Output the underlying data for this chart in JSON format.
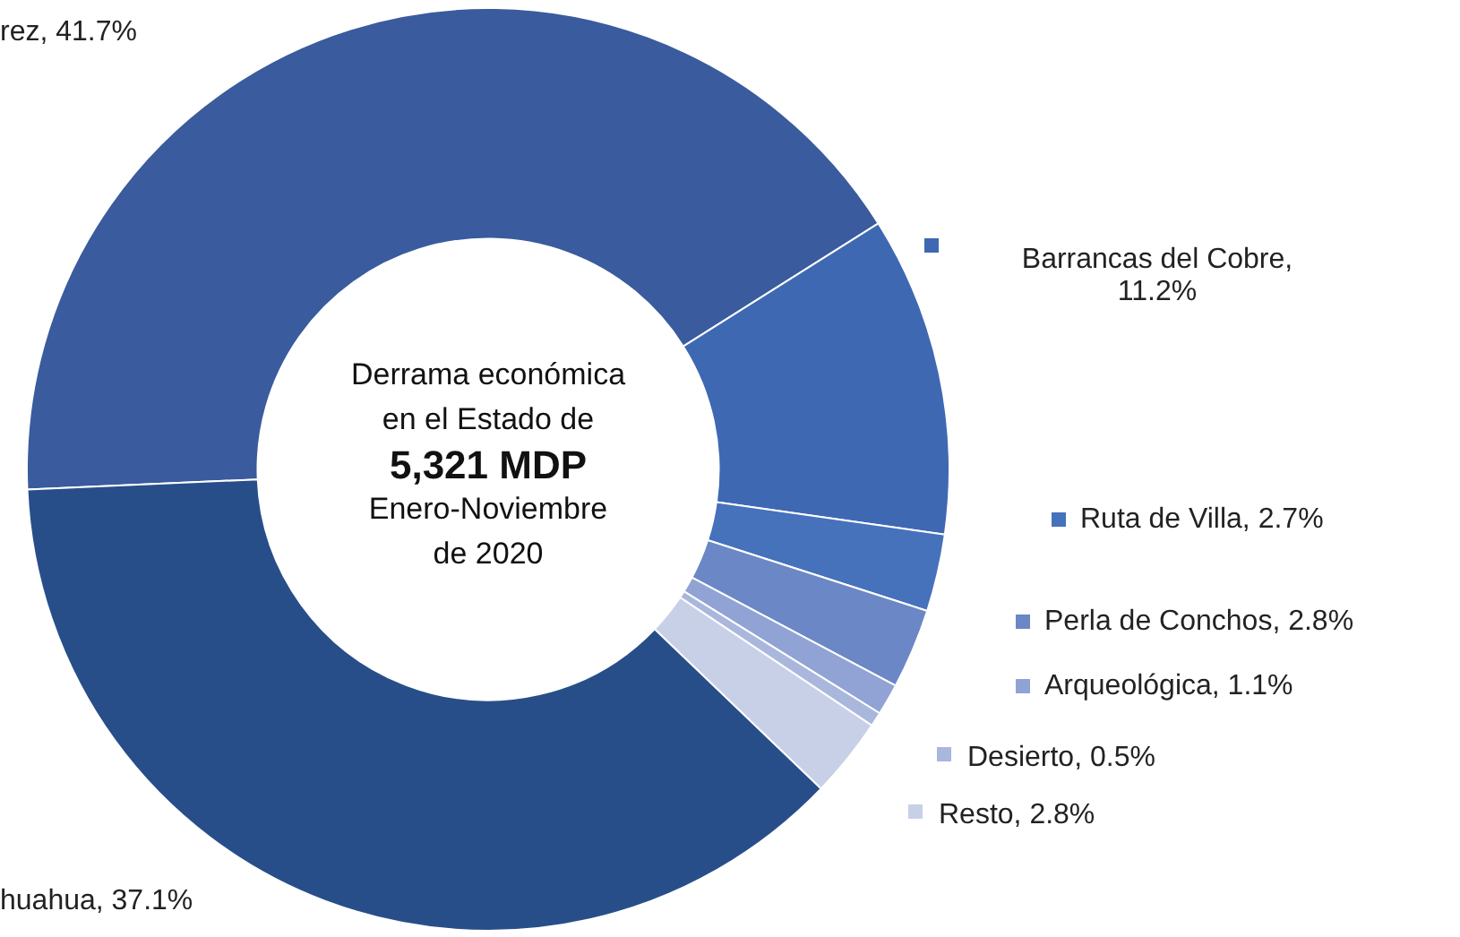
{
  "chart_data": {
    "type": "donut",
    "categories": [
      "rez, 41.7%",
      "Barrancas del Cobre, 11.2%",
      "Ruta de Villa, 2.7%",
      "Perla de Conchos, 2.8%",
      "Arqueológica, 1.1%",
      "Desierto, 0.5%",
      "Resto, 2.8%",
      "huahua, 37.1%"
    ],
    "values": [
      41.7,
      11.2,
      2.7,
      2.8,
      1.1,
      0.5,
      2.8,
      37.1
    ],
    "colors": [
      "#3a5b9d",
      "#3f68b3",
      "#4671bb",
      "#6b87c5",
      "#90a3d4",
      "#aab7dd",
      "#c8d0e8",
      "#284e89"
    ],
    "annotations": [
      "Derrama económica",
      "en el Estado de",
      "5,321 MDP",
      "Enero-Noviembre",
      "de 2020"
    ],
    "legend": "right"
  }
}
